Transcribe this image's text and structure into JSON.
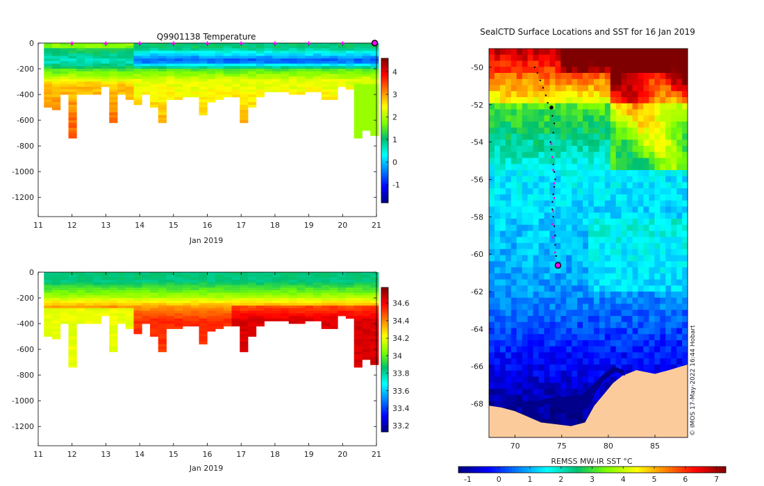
{
  "chart_data": [
    {
      "type": "heatmap",
      "title": "Q9901138  Temperature",
      "xlabel": "Jan 2019",
      "x_ticks": [
        "11",
        "12",
        "13",
        "14",
        "15",
        "16",
        "17",
        "18",
        "19",
        "20",
        "21"
      ],
      "y_ticks": [
        "0",
        "-200",
        "-400",
        "-600",
        "-800",
        "-1000",
        "-1200"
      ],
      "xlim": [
        11,
        21
      ],
      "ylim": [
        -1350,
        0
      ],
      "colorbar": {
        "ticks": [
          "-1",
          "0",
          "1",
          "2",
          "3",
          "4"
        ],
        "range": [
          -1.8,
          4.6
        ]
      },
      "profile_depths": [
        -500,
        -510,
        -400,
        -730,
        -400,
        -390,
        -390,
        -340,
        -610,
        -400,
        -440,
        -470,
        -400,
        -490,
        -610,
        -430,
        -430,
        -420,
        -420,
        -560,
        -460,
        -430,
        -410,
        -420,
        -610,
        -500,
        -420,
        -380,
        -370,
        -370,
        -400,
        -390,
        -370,
        -380,
        -440,
        -440,
        -340,
        -350,
        -740,
        -680,
        -710
      ],
      "surface_markers_x": [
        12,
        13,
        14,
        15,
        16,
        17,
        18,
        19,
        20
      ]
    },
    {
      "type": "heatmap",
      "title": "",
      "xlabel": "Jan 2019",
      "x_ticks": [
        "11",
        "12",
        "13",
        "14",
        "15",
        "16",
        "17",
        "18",
        "19",
        "20",
        "21"
      ],
      "y_ticks": [
        "0",
        "-200",
        "-400",
        "-600",
        "-800",
        "-1000",
        "-1200"
      ],
      "xlim": [
        11,
        21
      ],
      "ylim": [
        -1350,
        0
      ],
      "colorbar": {
        "ticks": [
          "33.2",
          "33.4",
          "33.6",
          "33.8",
          "34",
          "34.2",
          "34.4",
          "34.6"
        ],
        "range": [
          33.13,
          34.78
        ]
      }
    },
    {
      "type": "heatmap",
      "title": "SealCTD Surface Locations and SST for 16 Jan 2019",
      "x_ticks": [
        "70",
        "75",
        "80",
        "85"
      ],
      "y_ticks": [
        "-50",
        "-52",
        "-54",
        "-56",
        "-58",
        "-60",
        "-62",
        "-64",
        "-66",
        "-68"
      ],
      "lon_range": [
        67.2,
        88.5
      ],
      "lat_range": [
        -69.8,
        -49
      ],
      "colorbar": {
        "label": "REMSS MW-IR SST °C",
        "ticks": [
          "-1",
          "0",
          "1",
          "2",
          "3",
          "4",
          "5",
          "6",
          "7"
        ],
        "range": [
          -1.3,
          7.3
        ]
      },
      "track_lon": [
        72.1,
        72.4,
        72.7,
        73.0,
        73.3,
        73.5,
        73.8,
        74.0,
        74.2,
        74.1,
        73.8,
        73.9,
        74.0,
        74.1,
        74.2,
        74.3,
        74.2,
        74.1,
        74.0,
        74.0,
        74.1,
        74.2,
        74.3,
        74.3,
        74.4,
        74.5
      ],
      "track_lat": [
        -50.0,
        -50.3,
        -50.7,
        -51.1,
        -51.5,
        -51.9,
        -52.2,
        -52.6,
        -53.0,
        -53.5,
        -54.0,
        -54.4,
        -54.8,
        -55.2,
        -55.6,
        -56.0,
        -56.4,
        -56.8,
        -57.2,
        -57.6,
        -58.0,
        -58.5,
        -59.0,
        -59.5,
        -60.1,
        -60.6
      ],
      "magenta_lon": [
        73.9,
        74.0,
        74.1,
        74.2,
        74.2,
        74.1,
        74.0,
        74.1,
        74.3
      ],
      "magenta_lat": [
        -54.1,
        -54.8,
        -55.5,
        -56.2,
        -57.0,
        -57.7,
        -58.4,
        -59.1,
        -59.9
      ],
      "last_position": {
        "lon": 74.6,
        "lat": -60.6
      },
      "ice_edge_lat": -66.1
    }
  ],
  "stamp": "© IMOS 17-May-2022 16:44 Hobart",
  "colors": {
    "jet": [
      "#00007f",
      "#0000ff",
      "#007fff",
      "#00ffff",
      "#00c070",
      "#7fff00",
      "#ffff00",
      "#ff7f00",
      "#ff0000",
      "#7f0000"
    ],
    "land": "#fccb9c",
    "ice_shelf": "#00008b",
    "surface_marker": "#ff00ff"
  }
}
